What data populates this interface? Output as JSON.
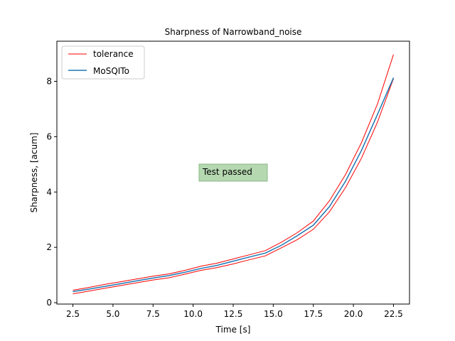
{
  "chart_data": {
    "type": "line",
    "title": "Sharpness of Narrowband_noise",
    "xlabel": "Time [s]",
    "ylabel": "Sharpness, [acum]",
    "xlim": [
      1.5,
      23.5
    ],
    "ylim": [
      -0.05,
      9.45
    ],
    "xticks": [
      2.5,
      5.0,
      7.5,
      10.0,
      12.5,
      15.0,
      17.5,
      20.0,
      22.5
    ],
    "xtick_labels": [
      "2.5",
      "5.0",
      "7.5",
      "10.0",
      "12.5",
      "15.0",
      "17.5",
      "20.0",
      "22.5"
    ],
    "yticks": [
      0,
      2,
      4,
      6,
      8
    ],
    "ytick_labels": [
      "0",
      "2",
      "4",
      "6",
      "8"
    ],
    "grid": false,
    "legend": {
      "position": "top-left"
    },
    "annotation": {
      "text": "Test passed",
      "x": 10.5,
      "y": 4.55,
      "facecolor": "#b5d8b0",
      "edgecolor": "#8cb787"
    },
    "x": [
      2.5,
      3.5,
      4.5,
      5.5,
      6.5,
      7.5,
      8.5,
      9.5,
      10.5,
      11.5,
      12.5,
      13.5,
      14.5,
      15.5,
      16.5,
      17.5,
      18.5,
      19.5,
      20.5,
      21.5,
      22.5
    ],
    "series": [
      {
        "name": "tolerance",
        "color": "#ff0000",
        "style": "tolerance",
        "upper": [
          0.45,
          0.55,
          0.66,
          0.76,
          0.86,
          0.96,
          1.04,
          1.17,
          1.32,
          1.43,
          1.58,
          1.73,
          1.88,
          2.18,
          2.53,
          2.95,
          3.68,
          4.62,
          5.78,
          7.18,
          8.97
        ],
        "lower": [
          0.32,
          0.42,
          0.52,
          0.62,
          0.72,
          0.82,
          0.9,
          1.03,
          1.17,
          1.27,
          1.4,
          1.55,
          1.69,
          1.98,
          2.28,
          2.65,
          3.28,
          4.15,
          5.22,
          6.52,
          8.1
        ]
      },
      {
        "name": "MoSQITo",
        "color": "#1f77b4",
        "values": [
          0.4,
          0.49,
          0.59,
          0.69,
          0.79,
          0.89,
          0.98,
          1.1,
          1.24,
          1.35,
          1.5,
          1.65,
          1.79,
          2.07,
          2.42,
          2.8,
          3.47,
          4.38,
          5.5,
          6.8,
          8.13
        ]
      }
    ]
  }
}
